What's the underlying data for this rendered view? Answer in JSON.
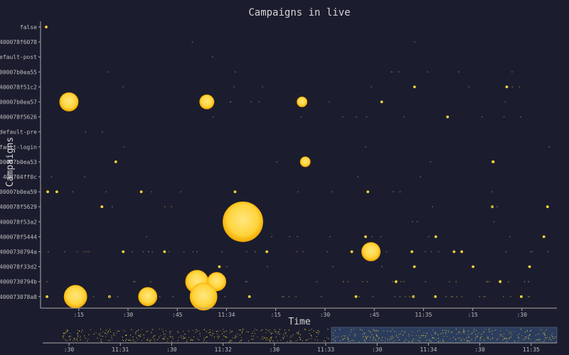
{
  "chart_data": {
    "type": "scatter",
    "title": "Campaigns in live",
    "xlabel": "Time",
    "ylabel": "Campaigns",
    "categories": [
      "false",
      "400078f6078",
      "efault-post",
      "400007b0ea55",
      "400078f51c2",
      "400007b0ea57",
      "400078f5626",
      "default-pre",
      "fault-login",
      "400007b0ea53",
      "400704ff0c",
      "400007b0ea59",
      "400078f5629",
      "400078f53a2",
      "400078f5444",
      "4000730794a",
      "400078f33d2",
      "4000730794b",
      "400073078a8"
    ],
    "x_ticks": [
      "11:33:15",
      "11:33:30",
      "11:33:45",
      "11:34",
      "11:34:15",
      "11:34:30",
      "11:34:45",
      "11:35",
      "11:35:15",
      "11:35:30"
    ],
    "x_tick_labels": [
      ":15",
      ":30",
      ":45",
      "11:34",
      ":15",
      ":30",
      ":45",
      "11:35",
      ":15",
      ":30"
    ],
    "xlim": [
      "11:33:04",
      "11:35:40"
    ],
    "large_points": [
      {
        "x": "11:33:12",
        "y": "400007b0ea57",
        "size": 3
      },
      {
        "x": "11:33:54",
        "y": "400007b0ea57",
        "size": 2
      },
      {
        "x": "11:34:23",
        "y": "400007b0ea57",
        "size": 1
      },
      {
        "x": "11:34:24",
        "y": "400007b0ea53",
        "size": 1
      },
      {
        "x": "11:34:05",
        "y": "400078f53a2",
        "size": 8
      },
      {
        "x": "11:34:44",
        "y": "4000730794a",
        "size": 3
      },
      {
        "x": "11:33:51",
        "y": "4000730794b",
        "size": 4
      },
      {
        "x": "11:33:57",
        "y": "4000730794b",
        "size": 3
      },
      {
        "x": "11:33:14",
        "y": "400073078a8",
        "size": 4
      },
      {
        "x": "11:33:36",
        "y": "400073078a8",
        "size": 3
      },
      {
        "x": "11:33:53",
        "y": "400073078a8",
        "size": 5
      }
    ],
    "point_color": "#ffd43b",
    "legend": "none",
    "grid": false
  },
  "overview": {
    "x_tick_labels": [
      ":30",
      "11:31",
      ":30",
      "11:32",
      ":30",
      "11:33",
      ":30",
      "11:34",
      ":30",
      "11:35"
    ],
    "brush_selection": [
      "11:33:04",
      "11:35:40"
    ],
    "brush_color": "#2b3d5e",
    "point_color": "#ffd43b"
  },
  "colors": {
    "background": "#1b1d2e",
    "axis": "#a9a9a9",
    "text": "#d4d4d4"
  }
}
